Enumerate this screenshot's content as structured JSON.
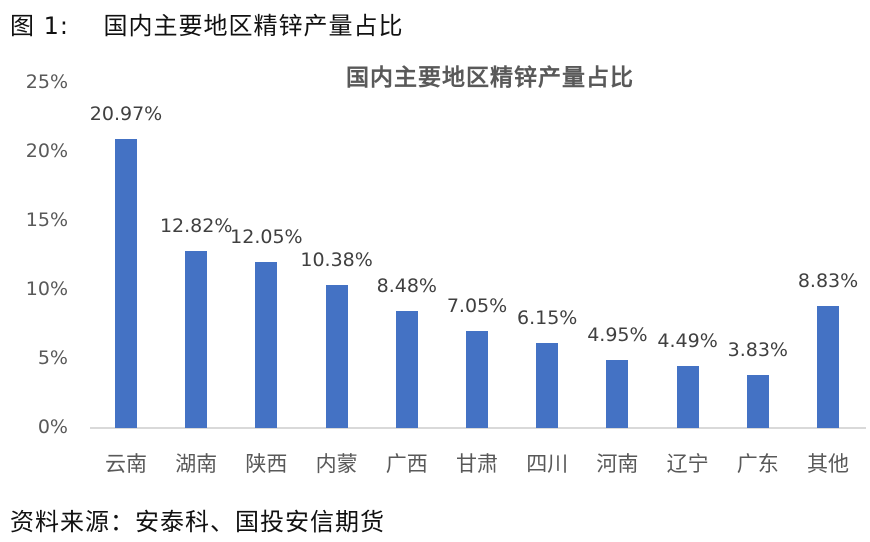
{
  "figure": {
    "caption": "图 1:    国内主要地区精锌产量占比",
    "source": "资料来源：安泰科、国投安信期货"
  },
  "chart_data": {
    "type": "bar",
    "title": "国内主要地区精锌产量占比",
    "xlabel": "",
    "ylabel": "",
    "categories": [
      "云南",
      "湖南",
      "陕西",
      "内蒙",
      "广西",
      "甘肃",
      "四川",
      "河南",
      "辽宁",
      "广东",
      "其他"
    ],
    "values": [
      20.97,
      12.82,
      12.05,
      10.38,
      8.48,
      7.05,
      6.15,
      4.95,
      4.49,
      3.83,
      8.83
    ],
    "data_labels": [
      "20.97%",
      "12.82%",
      "12.05%",
      "10.38%",
      "8.48%",
      "7.05%",
      "6.15%",
      "4.95%",
      "4.49%",
      "3.83%",
      "8.83%"
    ],
    "y_ticks": [
      "0%",
      "5%",
      "10%",
      "15%",
      "20%",
      "25%"
    ],
    "ylim": [
      0,
      25
    ],
    "grid": false,
    "legend": "none",
    "bar_color": "#4472c4",
    "unit": "%"
  }
}
